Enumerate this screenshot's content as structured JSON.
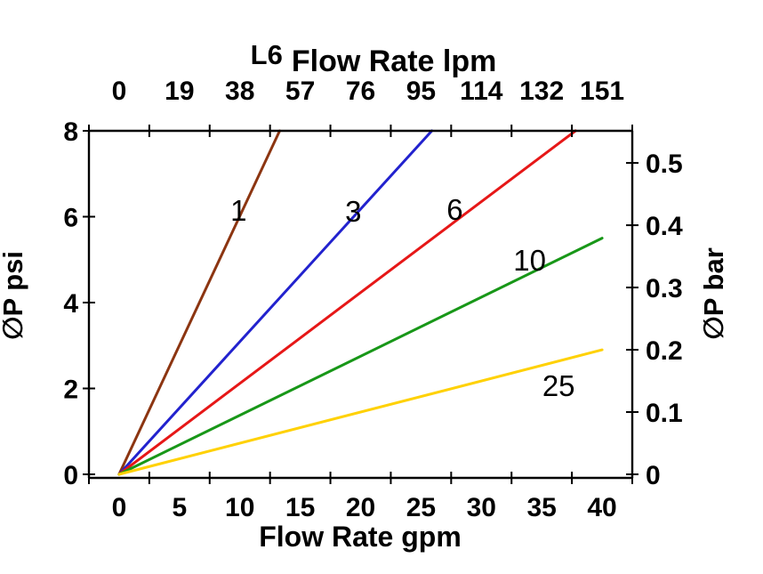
{
  "page": {
    "background": "#ffffff"
  },
  "chart_data": {
    "type": "line",
    "title": {
      "model": "L6",
      "text": "Flow Rate lpm"
    },
    "axes": {
      "bottom": {
        "label": "Flow Rate gpm",
        "unit": "gpm",
        "range": [
          -2.5,
          42.5
        ],
        "tick_values": [
          0,
          5,
          10,
          15,
          20,
          25,
          30,
          35,
          40
        ],
        "tick_labels": [
          "0",
          "5",
          "10",
          "15",
          "20",
          "25",
          "30",
          "35",
          "40"
        ],
        "n_tick_marks": 10
      },
      "top": {
        "unit": "lpm",
        "tick_labels": [
          "0",
          "19",
          "38",
          "57",
          "76",
          "95",
          "114",
          "132",
          "151"
        ]
      },
      "left": {
        "label": "∅P psi",
        "unit": "psi",
        "range": [
          0,
          8
        ],
        "tick_values": [
          0,
          2,
          4,
          6,
          8
        ],
        "tick_labels": [
          "0",
          "2",
          "4",
          "6",
          "8"
        ]
      },
      "right": {
        "label": "∅P bar",
        "unit": "bar",
        "tick_values": [
          0,
          0.1,
          0.2,
          0.3,
          0.4,
          0.5
        ],
        "tick_labels": [
          "0",
          "0.1",
          "0.2",
          "0.3",
          "0.4",
          "0.5"
        ],
        "psi_per_bar": 14.5038
      }
    },
    "grid": false,
    "legend": "inline-curve-labels",
    "series": [
      {
        "name": "1",
        "color": "#8C3511",
        "x": [
          0,
          13.3
        ],
        "y": [
          0,
          8
        ],
        "label_at": {
          "x": 9.9,
          "y": 6.13
        }
      },
      {
        "name": "3",
        "color": "#2222CE",
        "x": [
          0,
          25.9
        ],
        "y": [
          0,
          8
        ],
        "label_at": {
          "x": 19.4,
          "y": 6.11
        }
      },
      {
        "name": "6",
        "color": "#E61717",
        "x": [
          0,
          37.8
        ],
        "y": [
          0,
          8
        ],
        "label_at": {
          "x": 27.8,
          "y": 6.16
        }
      },
      {
        "name": "10",
        "color": "#189718",
        "x": [
          0,
          40
        ],
        "y": [
          0,
          5.5
        ],
        "label_at": {
          "x": 34.0,
          "y": 4.97
        }
      },
      {
        "name": "25",
        "color": "#FFD103",
        "x": [
          0,
          40
        ],
        "y": [
          0,
          2.9
        ],
        "label_at": {
          "x": 36.4,
          "y": 2.05
        }
      }
    ],
    "line_width": 3,
    "axis_color": "#000000"
  }
}
